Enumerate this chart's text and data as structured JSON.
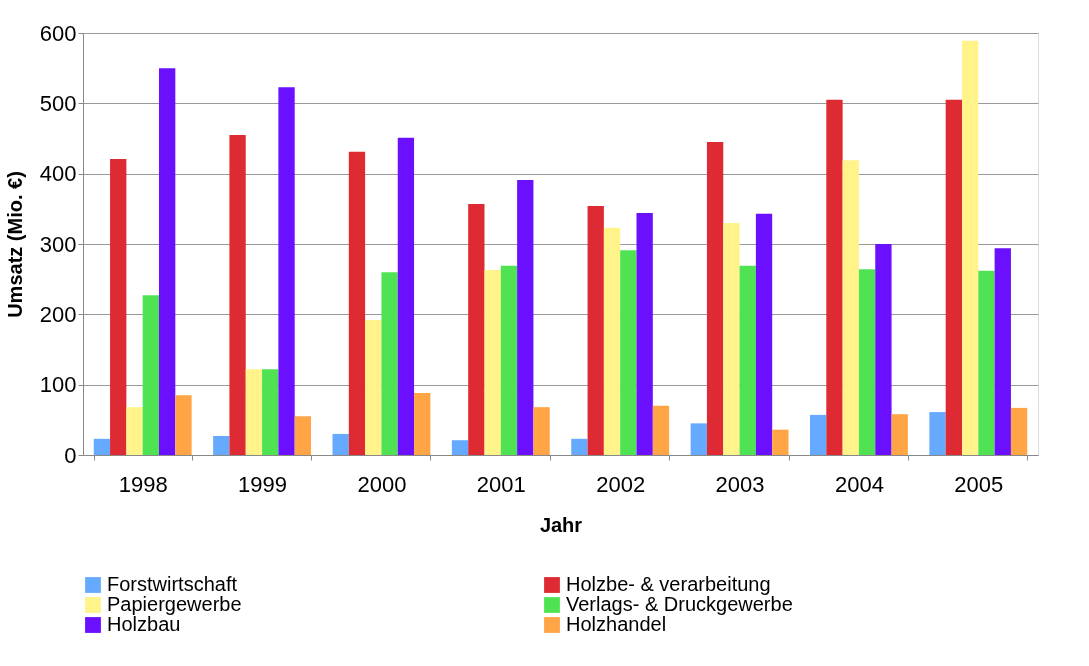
{
  "chart_data": {
    "type": "bar",
    "xlabel": "Jahr",
    "ylabel": "Umsatz (Mio. €)",
    "categories": [
      "1998",
      "1999",
      "2000",
      "2001",
      "2002",
      "2003",
      "2004",
      "2005"
    ],
    "series": [
      {
        "name": "Forstwirtschaft",
        "color": "#66aaff",
        "values": [
          23,
          27,
          30,
          21,
          23,
          45,
          57,
          61
        ]
      },
      {
        "name": "Holzbe- & verarbeitung",
        "color": "#de2b33",
        "values": [
          421,
          455,
          431,
          357,
          354,
          445,
          505,
          505
        ]
      },
      {
        "name": "Papiergewerbe",
        "color": "#fff38a",
        "values": [
          68,
          122,
          192,
          263,
          323,
          330,
          419,
          589
        ]
      },
      {
        "name": "Verlags- & Druckgewerbe",
        "color": "#4fe354",
        "values": [
          227,
          122,
          260,
          269,
          291,
          269,
          264,
          262
        ]
      },
      {
        "name": "Holzbau",
        "color": "#6a10ff",
        "values": [
          550,
          523,
          451,
          391,
          344,
          343,
          300,
          294
        ]
      },
      {
        "name": "Holzhandel",
        "color": "#ffa545",
        "values": [
          85,
          55,
          88,
          68,
          70,
          36,
          58,
          67
        ]
      }
    ],
    "ylim": [
      0,
      600
    ],
    "yticks": [
      0,
      100,
      200,
      300,
      400,
      500,
      600
    ],
    "grid": "y",
    "legend": "bottom"
  }
}
